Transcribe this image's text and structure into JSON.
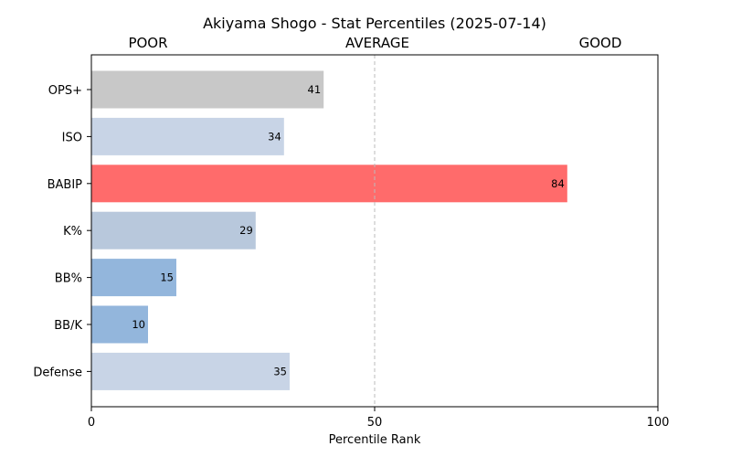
{
  "chart_data": {
    "type": "bar",
    "orientation": "horizontal",
    "title": "Akiyama Shogo - Stat Percentiles (2025-07-14)",
    "xlabel": "Percentile Rank",
    "ylabel": "",
    "xlim": [
      0,
      100
    ],
    "xticks": [
      0,
      50,
      100
    ],
    "zones": [
      {
        "label": "POOR",
        "position": "left"
      },
      {
        "label": "AVERAGE",
        "position": "center"
      },
      {
        "label": "GOOD",
        "position": "right"
      }
    ],
    "reference_line": {
      "x": 50,
      "style": "dashed"
    },
    "grid": false,
    "categories": [
      "OPS+",
      "ISO",
      "BABIP",
      "K%",
      "BB%",
      "BB/K",
      "Defense"
    ],
    "values": [
      41,
      34,
      84,
      29,
      15,
      10,
      35
    ],
    "colors": [
      "#c8c8c8",
      "#c8d4e6",
      "#ff6b6b",
      "#b8c8dc",
      "#93b6dc",
      "#93b6dc",
      "#c8d4e6"
    ]
  }
}
